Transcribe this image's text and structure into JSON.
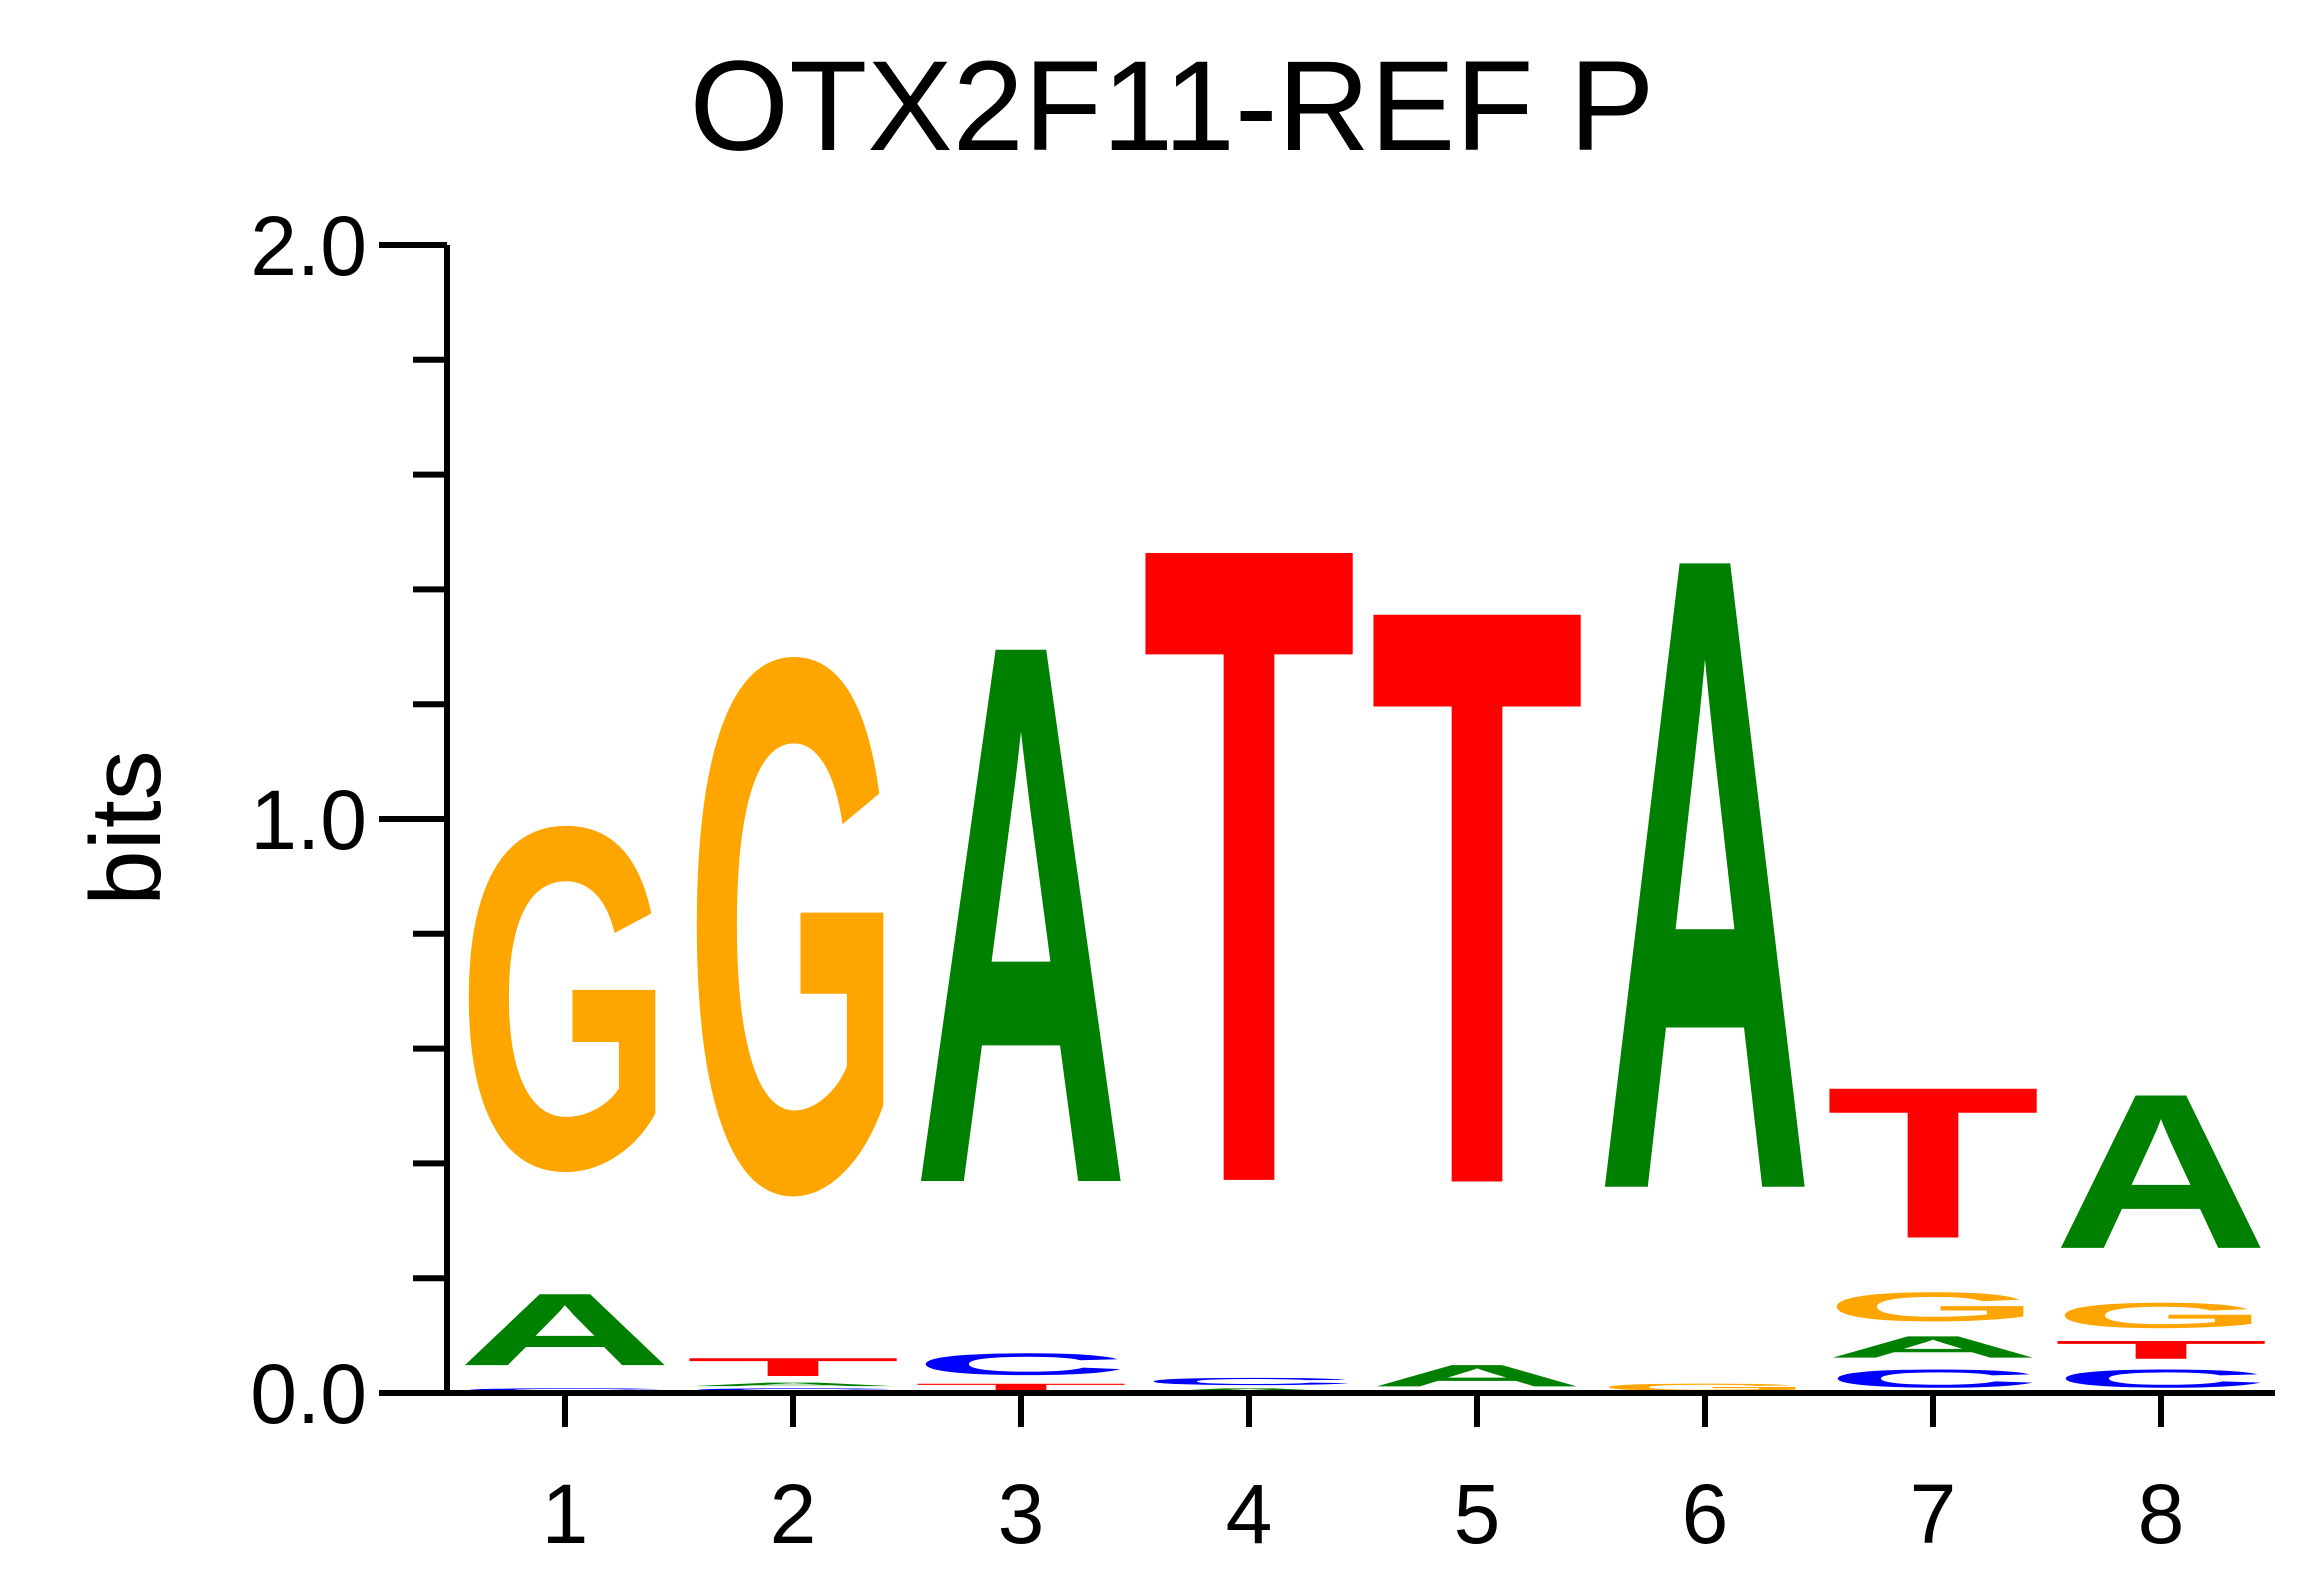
{
  "chart_data": {
    "type": "sequence-logo",
    "title": "OTX2F11-REF P",
    "ylabel": "bits",
    "ylim": [
      0,
      2
    ],
    "yticks": [
      {
        "value": 0,
        "label": "0.0"
      },
      {
        "value": 1,
        "label": "1.0"
      },
      {
        "value": 2,
        "label": "2.0"
      }
    ],
    "minor_tick_step": 0.2,
    "positions": [
      "1",
      "2",
      "3",
      "4",
      "5",
      "6",
      "7",
      "8"
    ],
    "colors": {
      "A": "#008000",
      "C": "#0000ff",
      "G": "#ffa500",
      "T": "#ff0000"
    },
    "stacks": [
      [
        {
          "base": "C",
          "bits": 0.01
        },
        {
          "base": "A",
          "bits": 0.2
        },
        {
          "base": "G",
          "bits": 0.95
        }
      ],
      [
        {
          "base": "C",
          "bits": 0.01
        },
        {
          "base": "A",
          "bits": 0.01
        },
        {
          "base": "T",
          "bits": 0.05
        },
        {
          "base": "G",
          "bits": 1.48
        }
      ],
      [
        {
          "base": "T",
          "bits": 0.02
        },
        {
          "base": "C",
          "bits": 0.06
        },
        {
          "base": "A",
          "bits": 1.5
        }
      ],
      [
        {
          "base": "A",
          "bits": 0.01
        },
        {
          "base": "C",
          "bits": 0.02
        },
        {
          "base": "T",
          "bits": 1.77
        }
      ],
      [
        {
          "base": "A",
          "bits": 0.06
        },
        {
          "base": "T",
          "bits": 1.6
        }
      ],
      [
        {
          "base": "G",
          "bits": 0.02
        },
        {
          "base": "A",
          "bits": 1.76
        }
      ],
      [
        {
          "base": "C",
          "bits": 0.05
        },
        {
          "base": "A",
          "bits": 0.06
        },
        {
          "base": "G",
          "bits": 0.08
        },
        {
          "base": "T",
          "bits": 0.42
        }
      ],
      [
        {
          "base": "C",
          "bits": 0.05
        },
        {
          "base": "T",
          "bits": 0.05
        },
        {
          "base": "G",
          "bits": 0.07
        },
        {
          "base": "A",
          "bits": 0.43
        }
      ]
    ]
  }
}
